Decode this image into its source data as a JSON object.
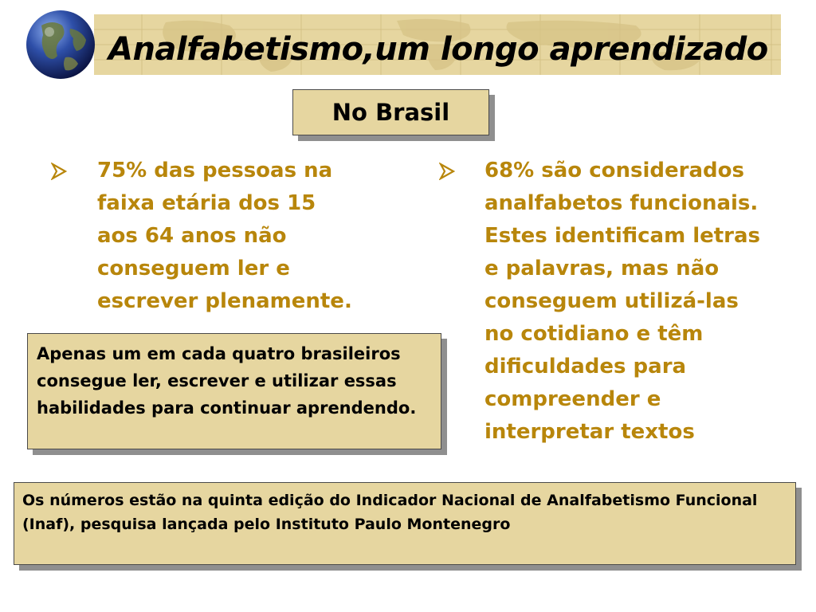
{
  "header": {
    "title": "Analfabetismo,um longo aprendizado"
  },
  "subtitle": "No Brasil",
  "bullets": [
    {
      "text": "75% das pessoas na\nfaixa etária dos 15\naos 64 anos não\nconseguem ler e\nescrever plenamente."
    },
    {
      "text": "68% são considerados\nanalfabetos funcionais.\nEstes identificam letras\ne palavras, mas não\nconseguem utilizá-las\nno cotidiano e têm\ndificuldades para\ncompreender e\ninterpretar textos"
    }
  ],
  "quote_box": {
    "text": "Apenas um em cada quatro brasileiros consegue ler, escrever e utilizar essas habilidades para continuar aprendendo."
  },
  "source_box": {
    "text": "Os números estão na quinta edição do Indicador Nacional de Analfabetismo Funcional (Inaf), pesquisa lançada pelo Instituto Paulo Montenegro"
  },
  "colors": {
    "accent_text": "#b8860b",
    "box_fill": "#e6d6a0",
    "box_shadow": "#8f8f8f"
  },
  "icons": {
    "logo": "globe-icon",
    "bullet": "arrow-bullet-icon"
  }
}
